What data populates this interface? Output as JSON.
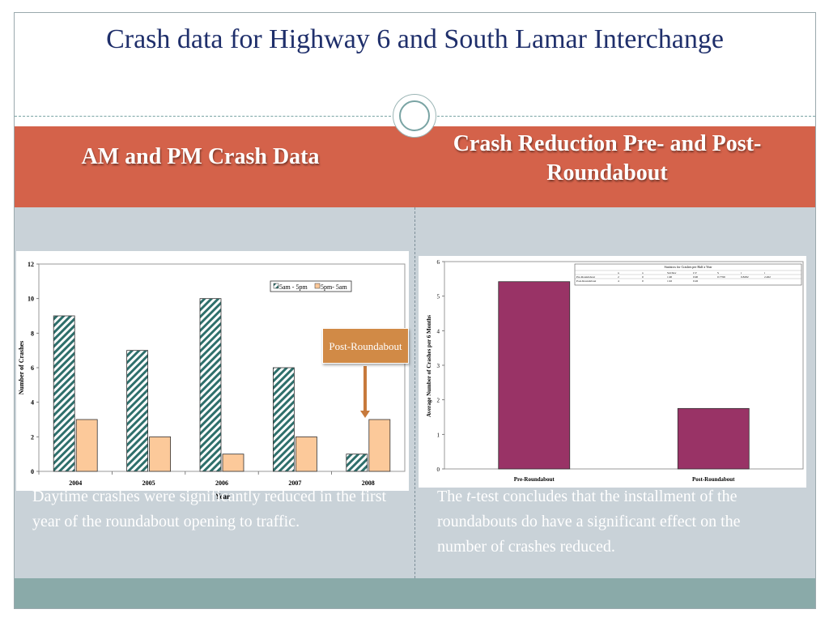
{
  "slide": {
    "title": "Crash data for Highway 6 and South Lamar Interchange",
    "left_header": "AM and PM Crash Data",
    "right_header": "Crash Reduction Pre- and Post- Roundabout",
    "left_caption": "Daytime crashes were significantly reduced in the first year of the roundabout opening to traffic.",
    "right_caption_prefix": "The ",
    "right_caption_italic": "t",
    "right_caption_rest": "-test concludes that the installment of the roundabouts do have a significant effect on the number of crashes reduced.",
    "callout": "Post-Roundabout",
    "colors": {
      "band": "#d4624a",
      "content": "#c9d2d8",
      "footer": "#8aaaa9",
      "title": "#1f2f6b"
    }
  },
  "chart_data": [
    {
      "type": "bar",
      "title": "",
      "xlabel": "Year",
      "ylabel": "Number of Crashes",
      "categories": [
        "2004",
        "2005",
        "2006",
        "2007",
        "2008"
      ],
      "ylim": [
        0,
        12
      ],
      "yticks": [
        "0",
        "2",
        "4",
        "6",
        "8",
        "10",
        "12"
      ],
      "legend_position": "top-right",
      "series": [
        {
          "name": "5am - 5pm",
          "values": [
            9,
            7,
            10,
            6,
            1
          ],
          "color": "#2e6f6b",
          "pattern": "diagonal-hatch"
        },
        {
          "name": "5pm- 5am",
          "values": [
            3,
            2,
            1,
            2,
            3
          ],
          "color": "#fcc99a"
        }
      ]
    },
    {
      "type": "bar",
      "title": "",
      "xlabel": "",
      "ylabel": "Average Number of Crashes per 6 Months",
      "categories": [
        "Pre-Roundabout",
        "Post-Roundabout"
      ],
      "values": [
        5.42,
        1.75
      ],
      "ylim": [
        0,
        6
      ],
      "yticks": [
        "0",
        "1",
        "2",
        "3",
        "4",
        "5",
        "6"
      ],
      "color": "#993366",
      "inset_table_title": "Statistics for Crashes per Half a Year",
      "inset_table": [
        [
          "",
          "n",
          "x",
          "Std Dev",
          "CV",
          "S",
          "t",
          "t"
        ],
        [
          "Pre-Roundabout",
          "2",
          "0",
          "1.90",
          "0.90",
          "0.7799",
          "0.8282",
          "2.262"
        ],
        [
          "Post-Roundabout",
          "4",
          "0",
          "1.92",
          "0.26",
          "",
          "",
          ""
        ]
      ]
    }
  ]
}
